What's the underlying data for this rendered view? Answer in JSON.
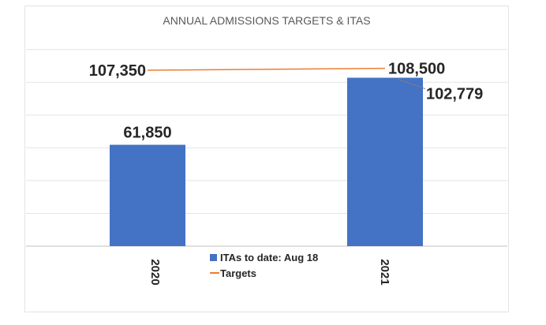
{
  "chart_data": {
    "type": "bar",
    "title": "ANNUAL ADMISSIONS TARGETS & ITAS",
    "categories": [
      "2020",
      "2021"
    ],
    "ylim": [
      0,
      130000
    ],
    "grid": true,
    "legend_position": "bottom-center",
    "series": [
      {
        "name": "ITAs to date: Aug 18",
        "kind": "bar",
        "values": [
          61850,
          102779
        ],
        "labels": [
          "61,850",
          "102,779"
        ],
        "color": "#4472C4"
      },
      {
        "name": "Targets",
        "kind": "line",
        "values": [
          107350,
          108500
        ],
        "labels": [
          "107,350",
          "108,500"
        ],
        "color": "#ED7D31"
      }
    ]
  },
  "colors": {
    "bar": "#4472C4",
    "line": "#ED7D31",
    "grid": "#d9d9d9",
    "text": "#262626"
  }
}
